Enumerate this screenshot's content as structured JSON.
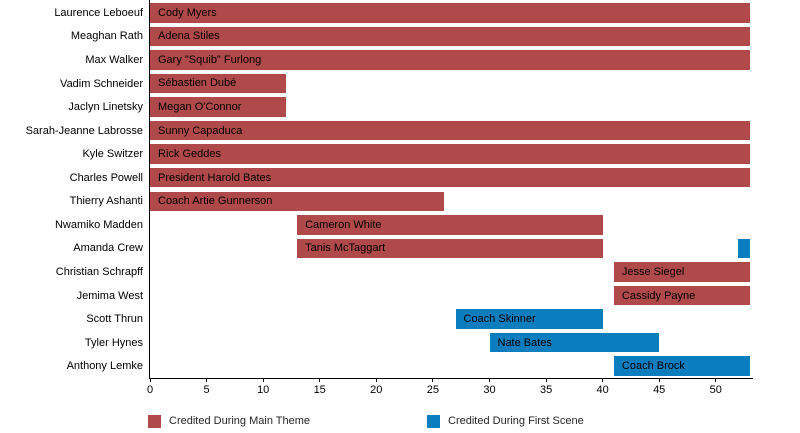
{
  "colors": {
    "main_theme": "#b04a4a",
    "first_scene": "#0a7dbf",
    "axis": "#000000",
    "text": "#000000"
  },
  "legend": {
    "items": [
      {
        "label": "Credited During Main Theme",
        "color_key": "main_theme"
      },
      {
        "label": "Credited During First Scene",
        "color_key": "first_scene"
      }
    ]
  },
  "chart_data": {
    "type": "bar",
    "orientation": "horizontal",
    "title": "",
    "xlabel": "",
    "ylabel": "",
    "grid": false,
    "legend_position": "bottom",
    "xlim": [
      0,
      53.2
    ],
    "xticks": [
      0,
      5,
      10,
      15,
      20,
      25,
      30,
      35,
      40,
      45,
      50
    ],
    "rows": [
      {
        "actor": "Laurence Leboeuf",
        "character": "Cody Myers",
        "segments": [
          {
            "start": 0,
            "end": 53,
            "type": "main_theme",
            "label": "Cody Myers"
          }
        ]
      },
      {
        "actor": "Meaghan Rath",
        "character": "Adena Stiles",
        "segments": [
          {
            "start": 0,
            "end": 53,
            "type": "main_theme",
            "label": "Adena Stiles"
          }
        ]
      },
      {
        "actor": "Max Walker",
        "character": "Gary \"Squib\" Furlong",
        "segments": [
          {
            "start": 0,
            "end": 53,
            "type": "main_theme",
            "label": "Gary \"Squib\" Furlong"
          }
        ]
      },
      {
        "actor": "Vadim Schneider",
        "character": "Sébastien Dubé",
        "segments": [
          {
            "start": 0,
            "end": 12,
            "type": "main_theme",
            "label": "Sébastien Dubé"
          }
        ]
      },
      {
        "actor": "Jaclyn Linetsky",
        "character": "Megan O'Connor",
        "segments": [
          {
            "start": 0,
            "end": 12,
            "type": "main_theme",
            "label": "Megan O'Connor"
          }
        ]
      },
      {
        "actor": "Sarah-Jeanne Labrosse",
        "character": "Sunny Capaduca",
        "segments": [
          {
            "start": 0,
            "end": 53,
            "type": "main_theme",
            "label": "Sunny Capaduca"
          }
        ]
      },
      {
        "actor": "Kyle Switzer",
        "character": "Rick Geddes",
        "segments": [
          {
            "start": 0,
            "end": 53,
            "type": "main_theme",
            "label": "Rick Geddes"
          }
        ]
      },
      {
        "actor": "Charles Powell",
        "character": "President Harold Bates",
        "segments": [
          {
            "start": 0,
            "end": 53,
            "type": "main_theme",
            "label": "President Harold Bates"
          }
        ]
      },
      {
        "actor": "Thierry Ashanti",
        "character": "Coach Artie Gunnerson",
        "segments": [
          {
            "start": 0,
            "end": 26,
            "type": "main_theme",
            "label": "Coach Artie Gunnerson"
          }
        ]
      },
      {
        "actor": "Nwamiko Madden",
        "character": "Cameron White",
        "segments": [
          {
            "start": 13,
            "end": 40,
            "type": "main_theme",
            "label": "Cameron White"
          }
        ]
      },
      {
        "actor": "Amanda Crew",
        "character": "Tanis McTaggart",
        "segments": [
          {
            "start": 13,
            "end": 40,
            "type": "main_theme",
            "label": "Tanis McTaggart"
          },
          {
            "start": 52,
            "end": 53,
            "type": "first_scene",
            "label": ""
          }
        ]
      },
      {
        "actor": "Christian Schrapff",
        "character": "Jesse Siegel",
        "segments": [
          {
            "start": 41,
            "end": 53,
            "type": "main_theme",
            "label": "Jesse Siegel"
          }
        ]
      },
      {
        "actor": "Jemima West",
        "character": "Cassidy Payne",
        "segments": [
          {
            "start": 41,
            "end": 53,
            "type": "main_theme",
            "label": "Cassidy Payne"
          }
        ]
      },
      {
        "actor": "Scott Thrun",
        "character": "Coach Skinner",
        "segments": [
          {
            "start": 27,
            "end": 40,
            "type": "first_scene",
            "label": "Coach Skinner"
          }
        ]
      },
      {
        "actor": "Tyler Hynes",
        "character": "Nate Bates",
        "segments": [
          {
            "start": 30,
            "end": 45,
            "type": "first_scene",
            "label": "Nate Bates"
          }
        ]
      },
      {
        "actor": "Anthony Lemke",
        "character": "Coach Brock",
        "segments": [
          {
            "start": 41,
            "end": 53,
            "type": "first_scene",
            "label": "Coach Brock"
          }
        ]
      }
    ]
  }
}
